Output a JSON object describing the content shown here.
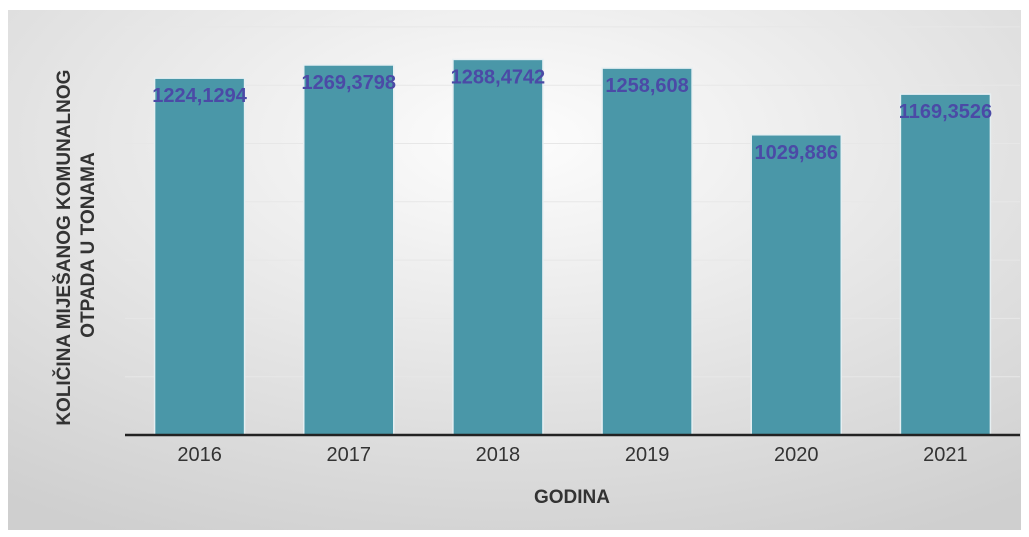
{
  "chart_data": {
    "type": "bar",
    "categories": [
      "2016",
      "2017",
      "2018",
      "2019",
      "2020",
      "2021"
    ],
    "values": [
      1224.1294,
      1269.3798,
      1288.4742,
      1258.608,
      1029.886,
      1169.3526
    ],
    "data_labels": [
      "1224,1294",
      "1269,3798",
      "1288,4742",
      "1258,608",
      "1029,886",
      "1169,3526"
    ],
    "title": "",
    "xlabel": "GODINA",
    "ylabel_lines": [
      "KOLIČINA MIJEŠANOG KOMUNALNOG",
      "OTPADA U TONAMA"
    ],
    "ylim": [
      0,
      1400
    ],
    "grid": true,
    "legend": "none",
    "colors": {
      "bar_fill": "#4a97a8",
      "bar_edge": "#e6eff2",
      "data_label": "#4b4aa6",
      "axis_text": "#333333",
      "baseline": "#222222",
      "gridline": "#e7e7e7",
      "background_top": "#fdfdfd",
      "background_bottom": "#cfcfcf"
    }
  }
}
